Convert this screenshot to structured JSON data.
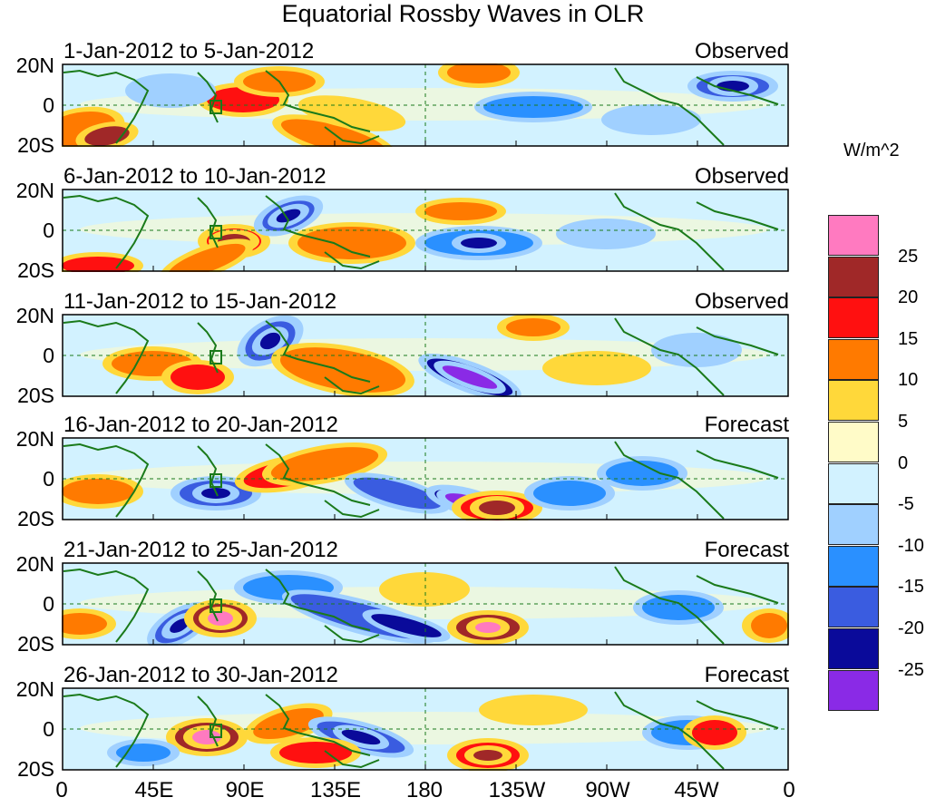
{
  "title": "Equatorial Rossby Waves in OLR",
  "units": "W/m^2",
  "lat_labels": {
    "north": "20N",
    "equator": "0",
    "south": "20S"
  },
  "lon_labels": [
    "0",
    "45E",
    "90E",
    "135E",
    "180",
    "135W",
    "90W",
    "45W",
    "0"
  ],
  "panels": [
    {
      "date_range": "1-Jan-2012 to 5-Jan-2012",
      "status": "Observed"
    },
    {
      "date_range": "6-Jan-2012 to 10-Jan-2012",
      "status": "Observed"
    },
    {
      "date_range": "11-Jan-2012 to 15-Jan-2012",
      "status": "Observed"
    },
    {
      "date_range": "16-Jan-2012 to 20-Jan-2012",
      "status": "Forecast"
    },
    {
      "date_range": "21-Jan-2012 to 25-Jan-2012",
      "status": "Forecast"
    },
    {
      "date_range": "26-Jan-2012 to 30-Jan-2012",
      "status": "Forecast"
    }
  ],
  "legend": {
    "labels": [
      "25",
      "20",
      "15",
      "10",
      "5",
      "0",
      "-5",
      "-10",
      "-15",
      "-20",
      "-25"
    ],
    "colors": [
      "#ff7ac0",
      "#a02828",
      "#ff1010",
      "#ff7a00",
      "#ffd83a",
      "#fffbc8",
      "#d2f2ff",
      "#a0d0ff",
      "#2a90ff",
      "#3a5ce0",
      "#0a0a9a",
      "#8a2ae6"
    ]
  },
  "contour_colors": {
    "strong_pos": "#ff7ac0",
    "pos4": "#a02828",
    "pos3": "#ff1010",
    "pos2": "#ff7a00",
    "pos1": "#ffd83a",
    "weak_pos": "#fffbc8",
    "weak_neg": "#d2f2ff",
    "neg1": "#a0d0ff",
    "neg2": "#2a90ff",
    "neg3": "#3a5ce0",
    "neg4": "#0a0a9a",
    "strong_neg": "#8a2ae6",
    "coast": "#1a7a1a"
  }
}
